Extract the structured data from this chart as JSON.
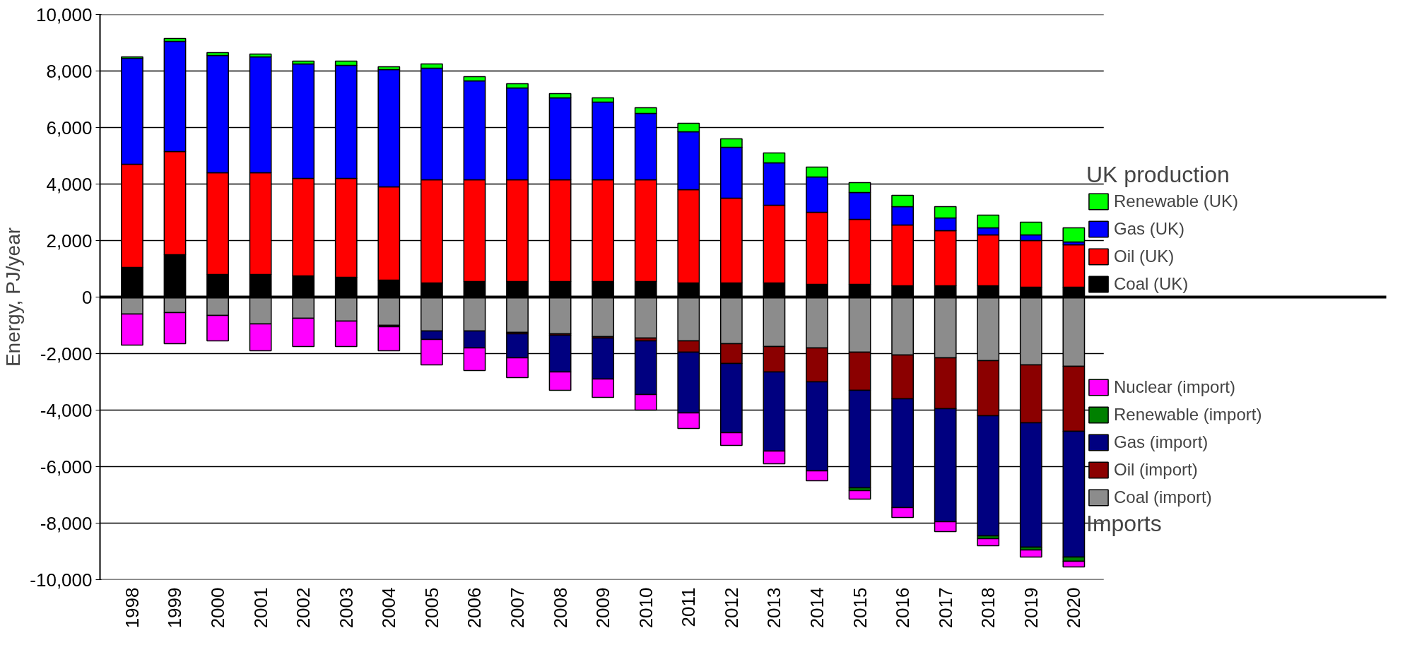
{
  "chart_data": {
    "type": "bar",
    "stacked": true,
    "ylabel": "Energy, PJ/year",
    "legend_title": "UK production",
    "annotations": [
      "Imports"
    ],
    "categories": [
      "1998",
      "1999",
      "2000",
      "2001",
      "2002",
      "2003",
      "2004",
      "2005",
      "2006",
      "2007",
      "2008",
      "2009",
      "2010",
      "2011",
      "2012",
      "2013",
      "2014",
      "2015",
      "2016",
      "2017",
      "2018",
      "2019",
      "2020"
    ],
    "series": [
      {
        "name": "Coal (UK)",
        "color": "#000000",
        "values": [
          1050,
          1500,
          800,
          800,
          750,
          700,
          600,
          500,
          550,
          550,
          550,
          550,
          550,
          500,
          500,
          500,
          450,
          450,
          400,
          400,
          400,
          350,
          350
        ]
      },
      {
        "name": "Oil (UK)",
        "color": "#ff0000",
        "values": [
          3650,
          3650,
          3600,
          3600,
          3450,
          3500,
          3300,
          3650,
          3600,
          3600,
          3600,
          3600,
          3600,
          3300,
          3000,
          2750,
          2550,
          2300,
          2150,
          1950,
          1800,
          1650,
          1500
        ]
      },
      {
        "name": "Gas (UK)",
        "color": "#0000ff",
        "values": [
          3750,
          3900,
          4150,
          4100,
          4050,
          4000,
          4150,
          3950,
          3500,
          3250,
          2900,
          2750,
          2350,
          2050,
          1800,
          1500,
          1250,
          950,
          650,
          450,
          250,
          200,
          100
        ]
      },
      {
        "name": "Renewable (UK)",
        "color": "#00ff00",
        "values": [
          50,
          100,
          100,
          100,
          100,
          150,
          100,
          150,
          150,
          150,
          150,
          150,
          200,
          300,
          300,
          350,
          350,
          350,
          400,
          400,
          450,
          450,
          500
        ]
      },
      {
        "name": "Coal (import)",
        "color": "#8c8c8c",
        "values": [
          -600,
          -550,
          -650,
          -950,
          -750,
          -850,
          -1000,
          -1200,
          -1200,
          -1250,
          -1300,
          -1400,
          -1450,
          -1550,
          -1650,
          -1750,
          -1800,
          -1950,
          -2050,
          -2150,
          -2250,
          -2400,
          -2450
        ]
      },
      {
        "name": "Oil (import)",
        "color": "#8b0000",
        "values": [
          null,
          null,
          null,
          null,
          null,
          null,
          -50,
          null,
          null,
          -50,
          -50,
          -50,
          -100,
          -400,
          -700,
          -900,
          -1200,
          -1350,
          -1550,
          -1800,
          -1950,
          -2050,
          -2300
        ]
      },
      {
        "name": "Gas (import)",
        "color": "#000080",
        "values": [
          null,
          null,
          null,
          null,
          null,
          null,
          null,
          -300,
          -600,
          -850,
          -1300,
          -1450,
          -1900,
          -2150,
          -2450,
          -2800,
          -3150,
          -3450,
          -3850,
          -4000,
          -4250,
          -4400,
          -4450
        ]
      },
      {
        "name": "Renewable (import)",
        "color": "#008000",
        "values": [
          null,
          null,
          null,
          null,
          null,
          null,
          null,
          null,
          null,
          null,
          null,
          null,
          null,
          null,
          null,
          null,
          null,
          -100,
          null,
          null,
          -100,
          -100,
          -150
        ]
      },
      {
        "name": "Nuclear (import)",
        "color": "#ff00ff",
        "values": [
          -1100,
          -1100,
          -900,
          -950,
          -1000,
          -900,
          -850,
          -900,
          -800,
          -700,
          -650,
          -650,
          -550,
          -550,
          -450,
          -450,
          -350,
          -300,
          -350,
          -350,
          -250,
          -250,
          -200
        ]
      }
    ],
    "ylim": [
      -10000,
      10000
    ],
    "yticks": [
      {
        "value": -10000,
        "label": "-10,000"
      },
      {
        "value": -8000,
        "label": "-8,000"
      },
      {
        "value": -6000,
        "label": "-6,000"
      },
      {
        "value": -4000,
        "label": "-4,000"
      },
      {
        "value": -2000,
        "label": "-2,000"
      },
      0,
      {
        "value": 2000,
        "label": "2,000"
      },
      {
        "value": 4000,
        "label": "4,000"
      },
      {
        "value": 6000,
        "label": "6,000"
      },
      {
        "value": 8000,
        "label": "8,000"
      },
      {
        "value": 10000,
        "label": "10,000"
      }
    ],
    "grid": "y",
    "legend": "right"
  }
}
